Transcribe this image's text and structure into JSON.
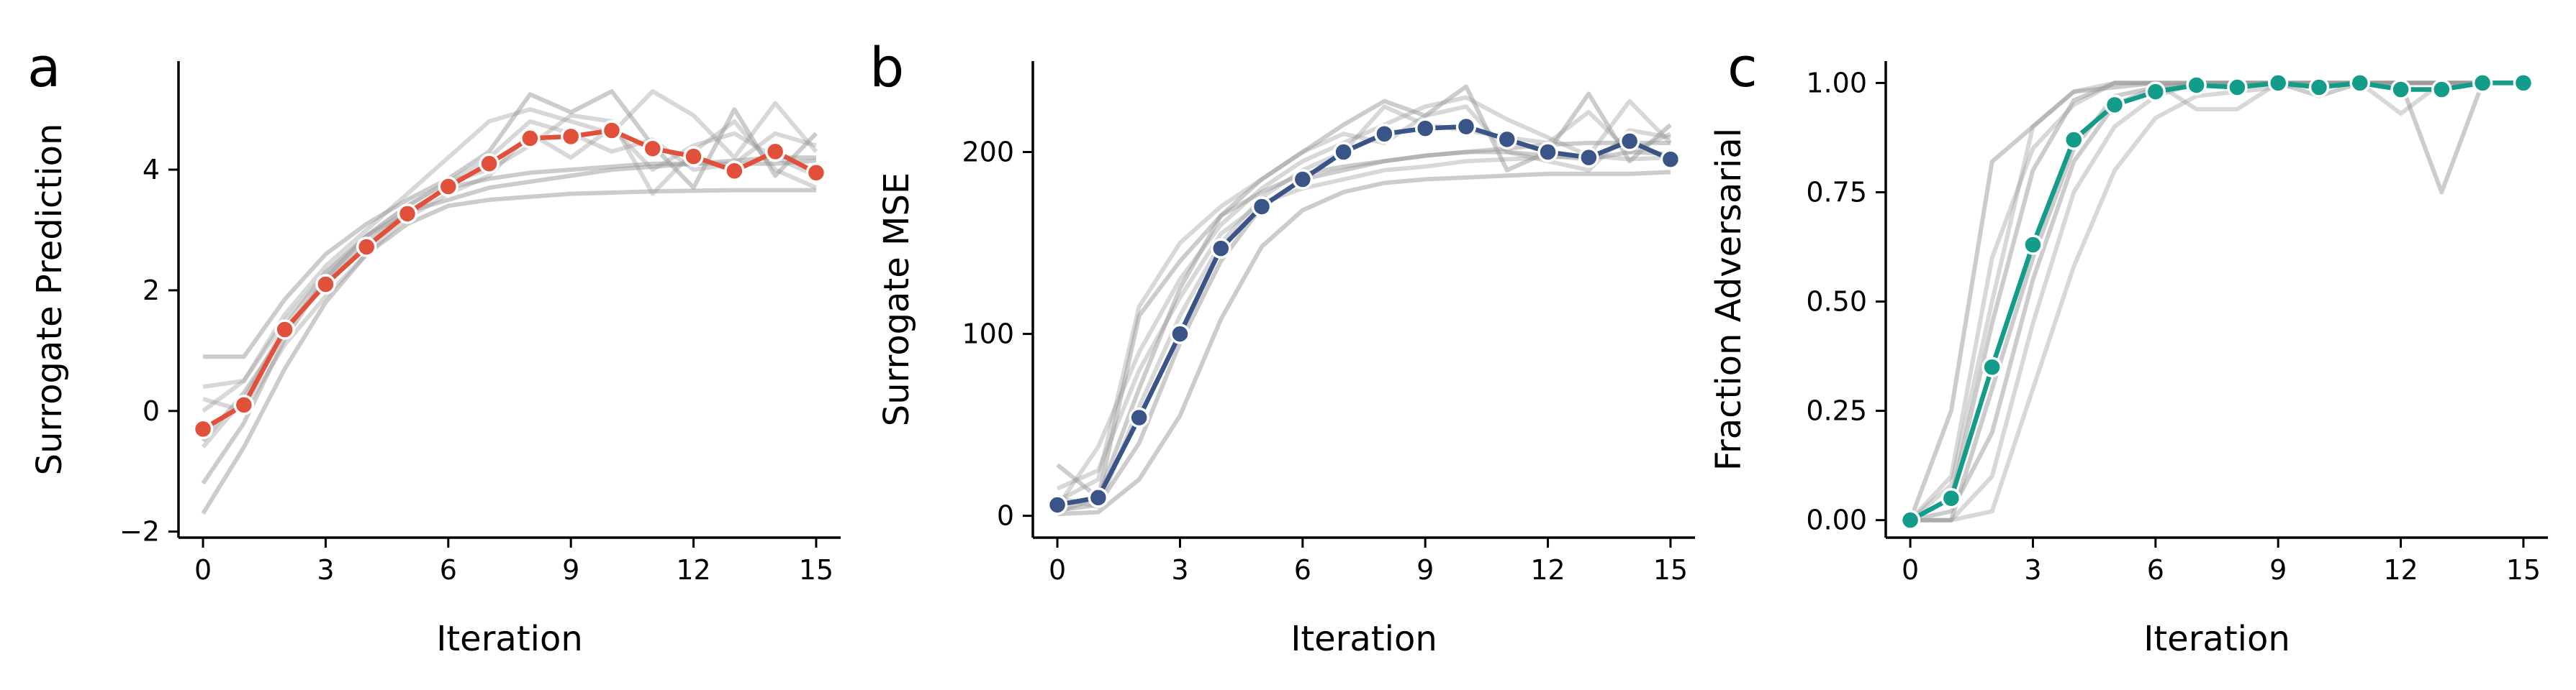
{
  "colors": {
    "panel_a": "#e0503a",
    "panel_b": "#3b5488",
    "panel_c": "#139c89",
    "runs": "#999999",
    "axis": "#000000"
  },
  "chart_data": [
    {
      "type": "line",
      "panel": "a",
      "xlabel": "Iteration",
      "ylabel": "Surrogate Prediction",
      "xlim": [
        -0.6,
        15.6
      ],
      "ylim": [
        -2.1,
        5.8
      ],
      "xticks": [
        0,
        3,
        6,
        9,
        12,
        15
      ],
      "yticks": [
        -2,
        0,
        2,
        4
      ],
      "ytick_labels": [
        "−2",
        "0",
        "2",
        "4"
      ],
      "grid": false,
      "x": [
        0,
        1,
        2,
        3,
        4,
        5,
        6,
        7,
        8,
        9,
        10,
        11,
        12,
        13,
        14,
        15
      ],
      "series": [
        {
          "values": [
            -0.3,
            0.1,
            1.35,
            2.1,
            2.72,
            3.27,
            3.72,
            4.1,
            4.52,
            4.55,
            4.65,
            4.35,
            4.22,
            3.98,
            4.3,
            3.95
          ]
        }
      ],
      "runs": [
        [
          0.9,
          0.9,
          1.85,
          2.6,
          3.1,
          3.5,
          3.85,
          4.3,
          5.25,
          4.95,
          5.3,
          4.4,
          3.7,
          5.0,
          3.9,
          4.6
        ],
        [
          0.4,
          0.5,
          1.6,
          2.4,
          3.0,
          3.6,
          4.2,
          4.8,
          5.0,
          4.8,
          4.6,
          5.3,
          4.9,
          4.2,
          5.1,
          4.3
        ],
        [
          -1.2,
          -0.2,
          1.2,
          2.2,
          2.9,
          3.3,
          3.5,
          3.7,
          3.8,
          3.9,
          4.0,
          4.05,
          4.1,
          4.1,
          4.1,
          4.15
        ],
        [
          -0.6,
          0.2,
          1.4,
          2.3,
          2.9,
          3.4,
          3.8,
          4.0,
          4.4,
          4.9,
          4.8,
          3.6,
          4.3,
          4.8,
          4.0,
          3.7
        ],
        [
          -1.7,
          -0.6,
          0.7,
          1.8,
          2.6,
          3.1,
          3.4,
          3.5,
          3.55,
          3.6,
          3.62,
          3.64,
          3.65,
          3.66,
          3.66,
          3.66
        ],
        [
          0.2,
          0.0,
          1.1,
          1.9,
          2.6,
          3.2,
          3.6,
          3.9,
          4.6,
          4.2,
          4.7,
          4.0,
          4.4,
          4.6,
          4.2,
          3.9
        ],
        [
          -0.5,
          0.3,
          1.3,
          2.2,
          2.8,
          3.3,
          3.7,
          3.85,
          3.95,
          4.0,
          4.05,
          4.1,
          4.1,
          4.15,
          4.2,
          4.2
        ],
        [
          0.0,
          0.5,
          1.5,
          2.3,
          2.9,
          3.4,
          3.8,
          4.2,
          4.8,
          4.6,
          4.3,
          4.5,
          4.0,
          4.1,
          4.6,
          4.4
        ]
      ]
    },
    {
      "type": "line",
      "panel": "b",
      "xlabel": "Iteration",
      "ylabel": "Surrogate MSE",
      "xlim": [
        -0.6,
        15.6
      ],
      "ylim": [
        -12,
        250
      ],
      "xticks": [
        0,
        3,
        6,
        9,
        12,
        15
      ],
      "yticks": [
        0,
        100,
        200
      ],
      "ytick_labels": [
        "0",
        "100",
        "200"
      ],
      "grid": false,
      "x": [
        0,
        1,
        2,
        3,
        4,
        5,
        6,
        7,
        8,
        9,
        10,
        11,
        12,
        13,
        14,
        15
      ],
      "series": [
        {
          "values": [
            6,
            10,
            54,
            100,
            147,
            170,
            185,
            200,
            210,
            213,
            214,
            207,
            200,
            197,
            206,
            196
          ]
        }
      ],
      "runs": [
        [
          28,
          10,
          110,
          140,
          165,
          185,
          200,
          215,
          228,
          220,
          236,
          190,
          200,
          232,
          195,
          215
        ],
        [
          5,
          38,
          90,
          130,
          160,
          180,
          195,
          205,
          215,
          225,
          230,
          218,
          208,
          198,
          228,
          205
        ],
        [
          2,
          10,
          70,
          125,
          165,
          178,
          188,
          192,
          195,
          198,
          200,
          202,
          204,
          205,
          205,
          205
        ],
        [
          10,
          5,
          60,
          110,
          150,
          175,
          190,
          200,
          225,
          215,
          212,
          208,
          205,
          222,
          200,
          210
        ],
        [
          1,
          2,
          20,
          55,
          108,
          148,
          168,
          178,
          183,
          185,
          186,
          187,
          188,
          188,
          188,
          189
        ],
        [
          8,
          20,
          115,
          150,
          170,
          185,
          200,
          210,
          205,
          220,
          225,
          200,
          195,
          190,
          212,
          208
        ],
        [
          3,
          6,
          40,
          95,
          140,
          170,
          185,
          190,
          195,
          198,
          200,
          200,
          198,
          196,
          200,
          199
        ],
        [
          15,
          25,
          80,
          120,
          155,
          172,
          180,
          185,
          190,
          192,
          195,
          196,
          197,
          198,
          196,
          197
        ]
      ]
    },
    {
      "type": "line",
      "panel": "c",
      "xlabel": "Iteration",
      "ylabel": "Fraction Adversarial",
      "xlim": [
        -0.6,
        15.6
      ],
      "ylim": [
        -0.04,
        1.05
      ],
      "xticks": [
        0,
        3,
        6,
        9,
        12,
        15
      ],
      "yticks": [
        0.0,
        0.25,
        0.5,
        0.75,
        1.0
      ],
      "ytick_labels": [
        "0.00",
        "0.25",
        "0.50",
        "0.75",
        "1.00"
      ],
      "grid": false,
      "x": [
        0,
        1,
        2,
        3,
        4,
        5,
        6,
        7,
        8,
        9,
        10,
        11,
        12,
        13,
        14,
        15
      ],
      "series": [
        {
          "values": [
            0.0,
            0.05,
            0.35,
            0.63,
            0.87,
            0.95,
            0.98,
            0.995,
            0.99,
            1.0,
            0.99,
            1.0,
            0.985,
            0.985,
            1.0,
            1.0
          ]
        }
      ],
      "runs": [
        [
          0.0,
          0.25,
          0.82,
          0.9,
          0.98,
          0.99,
          1.0,
          1.0,
          1.0,
          1.0,
          1.0,
          1.0,
          1.0,
          0.75,
          1.0,
          1.0
        ],
        [
          0.0,
          0.1,
          0.6,
          0.85,
          0.95,
          1.0,
          1.0,
          0.94,
          0.94,
          1.0,
          1.0,
          1.0,
          0.93,
          1.0,
          1.0,
          1.0
        ],
        [
          0.0,
          0.0,
          0.3,
          0.6,
          0.85,
          0.97,
          0.99,
          1.0,
          1.0,
          1.0,
          1.0,
          1.0,
          1.0,
          1.0,
          1.0,
          1.0
        ],
        [
          0.0,
          0.0,
          0.02,
          0.3,
          0.58,
          0.8,
          0.92,
          0.97,
          0.98,
          0.99,
          1.0,
          1.0,
          1.0,
          1.0,
          1.0,
          1.0
        ],
        [
          0.0,
          0.05,
          0.45,
          0.8,
          0.96,
          1.0,
          1.0,
          1.0,
          1.0,
          1.0,
          0.97,
          1.0,
          1.0,
          1.0,
          1.0,
          1.0
        ],
        [
          0.0,
          0.0,
          0.1,
          0.45,
          0.75,
          0.9,
          0.97,
          1.0,
          1.0,
          1.0,
          1.0,
          1.0,
          1.0,
          1.0,
          1.0,
          1.0
        ],
        [
          0.0,
          0.02,
          0.2,
          0.55,
          0.82,
          0.95,
          0.99,
          1.0,
          1.0,
          1.0,
          1.0,
          1.0,
          1.0,
          1.0,
          1.0,
          1.0
        ],
        [
          0.0,
          0.08,
          0.5,
          0.9,
          0.98,
          1.0,
          1.0,
          1.0,
          1.0,
          1.0,
          1.0,
          1.0,
          1.0,
          1.0,
          1.0,
          1.0
        ]
      ]
    }
  ]
}
